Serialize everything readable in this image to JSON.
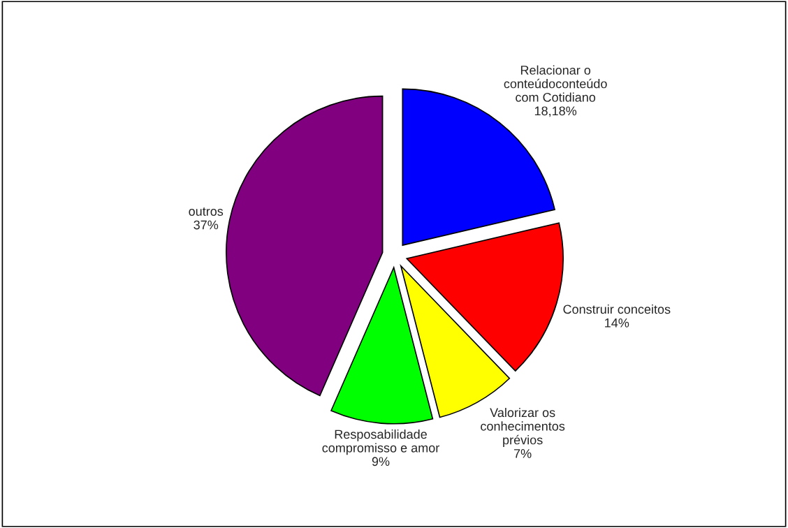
{
  "chart_data": {
    "type": "pie",
    "categories": [
      "Relacionar o\nconteúdoconteúdo\ncom Cotidiano",
      "Construir conceitos",
      "Valorizar os\nconhecimentos\nprévios",
      "Resposabilidade\ncompromisso e amor",
      "outros"
    ],
    "values": [
      18.18,
      14,
      7,
      9,
      37
    ],
    "value_labels": [
      "18,18%",
      "14%",
      "7%",
      "9%",
      "37%"
    ],
    "colors": [
      "#0000ff",
      "#ff0000",
      "#ffff00",
      "#00ff00",
      "#800080"
    ]
  }
}
